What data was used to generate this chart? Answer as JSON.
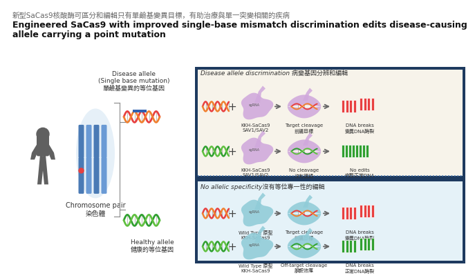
{
  "bg_color": "#ffffff",
  "title_chinese": "新型SaCas9核酸酶可區分和編輯只有單鹼基變異目標，有助治療與單一突變相關的疾病",
  "title_english_line1": "Engineered SaCas9 with improved single-base mismatch discrimination edits disease-causing",
  "title_english_line2": "allele carrying a point mutation",
  "left_panel": {
    "disease_allele_label": "Disease allele\n(Single base mutation)\n單鹼基變異的等位基因",
    "chromosome_label": "Chromosome pair\n染色體",
    "healthy_label": "Healthy allele\n健康的等位基因"
  },
  "right_top_panel": {
    "border_color": "#1e3a5f",
    "inner_bg": "#f7f3ea",
    "title": "Disease allele discrimination 病變基因分辨和編輯",
    "row1_labels": [
      "KKH-SaCas9\nSAV1/SAV2",
      "Target cleavage\n前編目標",
      "DNA breaks\n變異DNA酶裂"
    ],
    "row2_labels": [
      "KKH-SaCas9\nSAV1/SAV2",
      "No cleavage\n沒有編輯",
      "No edits\n完整正常DNA"
    ]
  },
  "right_bottom_panel": {
    "border_color": "#1e3a5f",
    "inner_bg": "#e5f2f8",
    "title": "No allelic specificity沒有等位專一性的編輯",
    "row1_labels": [
      "Wild Type 原型\nKKH-SaCas9",
      "Target cleavage\n前編目標",
      "DNA breaks\n變異DNA酶裂"
    ],
    "row2_labels": [
      "Wild Type 原型\nKKH-SaCas9",
      "Off-target cleavage\n脫靶效應",
      "DNA breaks\n正常DNA酶裂"
    ]
  },
  "dna_red1": "#e84040",
  "dna_red2": "#f08030",
  "dna_green1": "#30a030",
  "dna_green2": "#60c040",
  "protein_purple": "#d0a8dc",
  "protein_teal": "#90ccd8",
  "sep_color": "#4a7ab5",
  "arrow_color": "#666666",
  "human_color": "#606060",
  "chrom_color1": "#4a7ab5",
  "chrom_color2": "#6a9ad5",
  "chrom_bg": "#c8dff0"
}
